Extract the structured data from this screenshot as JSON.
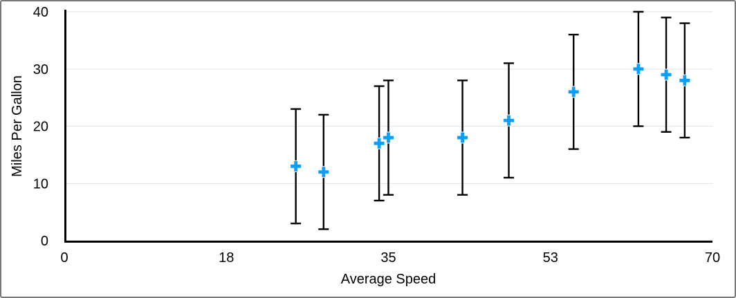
{
  "window": {
    "background": "#ffffff",
    "border_color": "#777777"
  },
  "chart_data": {
    "type": "scatter",
    "title": "",
    "xlabel": "Average Speed",
    "ylabel": "Miles Per Gallon",
    "xlim": [
      0,
      70
    ],
    "ylim": [
      0,
      40
    ],
    "x_tick_positions": [
      0,
      17.5,
      35,
      52.5,
      70
    ],
    "x_tick_labels": [
      "0",
      "18",
      "35",
      "53",
      "70"
    ],
    "y_tick_positions": [
      0,
      10,
      20,
      30,
      40
    ],
    "y_tick_labels": [
      "0",
      "10",
      "20",
      "30",
      "40"
    ],
    "grid": "horizontal",
    "legend": "none",
    "marker": "plus",
    "colors": {
      "marker": "#0A9FF8",
      "error_bar": "#000000",
      "axis": "#000000",
      "gridline": "#E2E2E2",
      "text": "#000000"
    },
    "error_bars": {
      "type": "fixed_value",
      "plus": 10,
      "minus": 10
    },
    "points": [
      {
        "x": 25,
        "y": 13
      },
      {
        "x": 28,
        "y": 12
      },
      {
        "x": 34,
        "y": 17
      },
      {
        "x": 35,
        "y": 18
      },
      {
        "x": 43,
        "y": 18
      },
      {
        "x": 48,
        "y": 21
      },
      {
        "x": 55,
        "y": 26
      },
      {
        "x": 62,
        "y": 30
      },
      {
        "x": 65,
        "y": 29
      },
      {
        "x": 67,
        "y": 28
      }
    ]
  }
}
